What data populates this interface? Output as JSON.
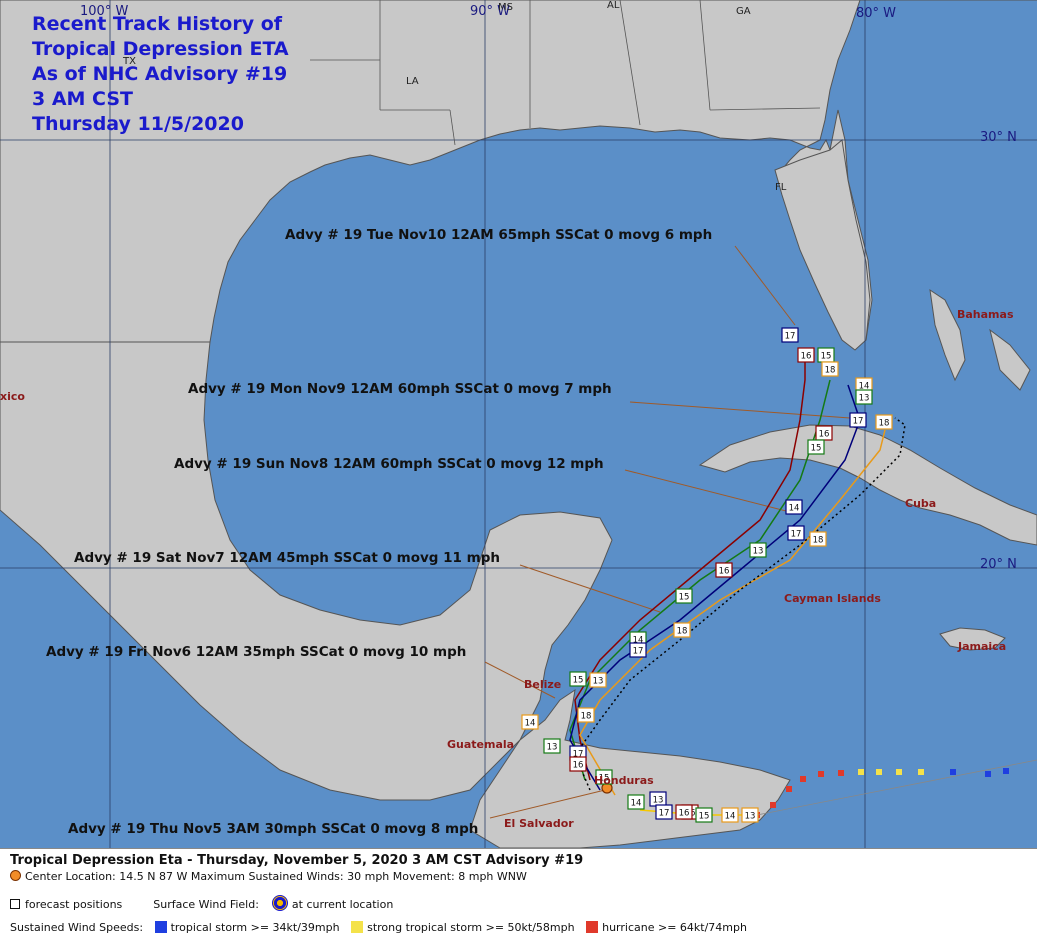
{
  "title": {
    "lines": [
      "Recent Track History of",
      "Tropical Depression ETA",
      "As of NHC Advisory #19",
      "3 AM CST",
      "Thursday 11/5/2020"
    ]
  },
  "coordinates": {
    "lon_100w": "100° W",
    "lon_90w": "90° W",
    "lon_80w": "80° W",
    "lat_30n": "30° N",
    "lat_20n": "20° N"
  },
  "states": {
    "ms": "MS",
    "al": "AL",
    "ga": "GA",
    "la": "LA",
    "tx": "TX",
    "fl": "FL"
  },
  "places": {
    "bahamas": "Bahamas",
    "mexico": "xico",
    "cuba": "Cuba",
    "cayman": "Cayman Islands",
    "jamaica": "Jamaica",
    "belize": "Belize",
    "guatemala": "Guatemala",
    "honduras": "Honduras",
    "el_salvador": "El Salvador"
  },
  "advisories": [
    "Advy # 19 Tue Nov10 12AM  65mph SSCat 0 movg 6 mph",
    "Advy # 19 Mon Nov9 12AM  60mph SSCat 0 movg 7 mph",
    "Advy # 19 Sun Nov8 12AM  60mph SSCat 0 movg 12 mph",
    "Advy # 19 Sat Nov7 12AM  45mph SSCat 0 movg 11 mph",
    "Advy # 19 Fri Nov6 12AM  35mph SSCat 0 movg 10 mph",
    "Advy # 19 Thu Nov5 3AM  30mph SSCat 0 movg 8 mph"
  ],
  "track_labels": {
    "north": [
      "17",
      "16",
      "15",
      "18",
      "14",
      "17",
      "13",
      "18",
      "16",
      "15"
    ],
    "mid": [
      "14",
      "17",
      "13",
      "18",
      "16",
      "15",
      "14",
      "17",
      "18"
    ],
    "south": [
      "15",
      "13",
      "14",
      "18",
      "13",
      "17",
      "16",
      "15",
      "14",
      "16",
      "13",
      "17",
      "16",
      "15",
      "14",
      "13"
    ]
  },
  "legend": {
    "title": "Tropical Depression Eta  -  Thursday, November 5, 2020  3 AM CST   Advisory #19",
    "center": "Center Location: 14.5 N  87 W   Maximum Sustained Winds: 30 mph  Movement: 8 mph WNW",
    "forecast_positions": "forecast positions",
    "surface_wind_field": "Surface Wind Field:",
    "at_current_location": "at current location",
    "sustained_label": "Sustained Wind Speeds:",
    "tropical_storm": "tropical storm >= 34kt/39mph",
    "strong_tropical_storm": "strong tropical storm >= 50kt/58mph",
    "hurricane": "hurricane >= 64kt/74mph",
    "colors": {
      "tropical_storm": "#1f3fe0",
      "strong_tropical_storm": "#f4e24a",
      "hurricane": "#e0392b"
    }
  }
}
